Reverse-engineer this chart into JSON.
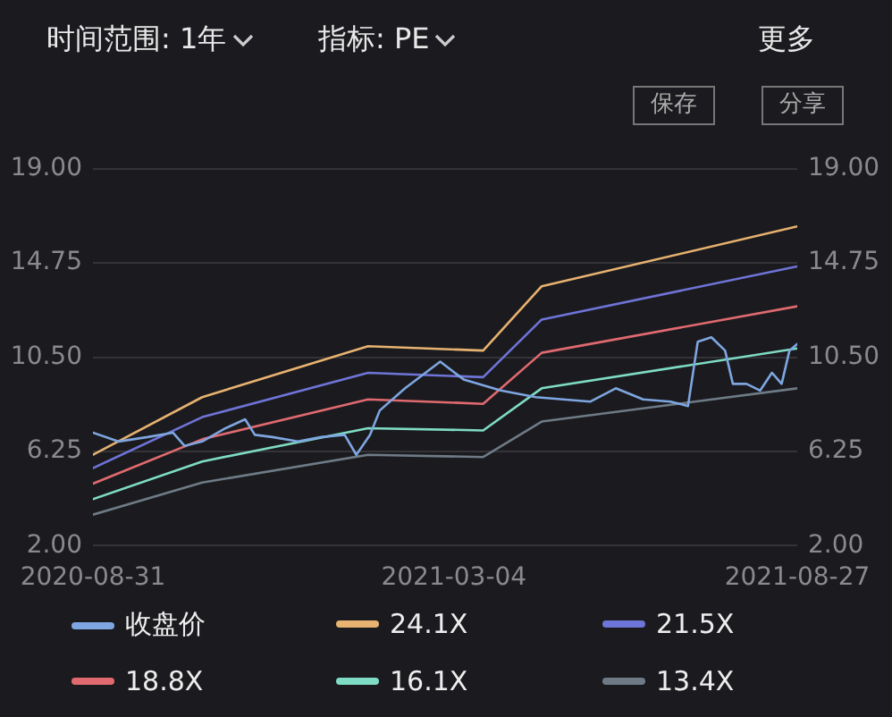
{
  "chart_data": {
    "type": "line",
    "annotations": [
      "时间范围: 1年",
      "指标: PE",
      "更多",
      "保存",
      "分享"
    ],
    "xlim": [
      "2020-08-31",
      "2021-08-27"
    ],
    "xticks": [
      {
        "value": "2020-08-31",
        "label": "2020-08-31"
      },
      {
        "value": "2021-03-04",
        "label": "2021-03-04"
      },
      {
        "value": "2021-08-27",
        "label": "2021-08-27"
      }
    ],
    "ylim": [
      2,
      19
    ],
    "yticks": [
      {
        "value": 2,
        "label": "2.00"
      },
      {
        "value": 6.25,
        "label": "6.25"
      },
      {
        "value": 10.5,
        "label": "10.50"
      },
      {
        "value": 14.75,
        "label": "14.75"
      },
      {
        "value": 19,
        "label": "19.00"
      }
    ],
    "y2lim": [
      2,
      19
    ],
    "y2ticks": [
      {
        "value": 2,
        "label": "2.00"
      },
      {
        "value": 6.25,
        "label": "6.25"
      },
      {
        "value": 10.5,
        "label": "10.50"
      },
      {
        "value": 14.75,
        "label": "14.75"
      },
      {
        "value": 19,
        "label": "19.00"
      }
    ],
    "grid": "y",
    "legend": "bottom",
    "marker": "none",
    "line_style": "solid",
    "series": [
      {
        "name": "收盘价",
        "color": "#7ea6e0",
        "x": [
          "2020-08-31",
          "2020-09-13",
          "2020-09-28",
          "2020-10-11",
          "2020-10-17",
          "2020-10-26",
          "2020-11-07",
          "2020-11-17",
          "2020-11-22",
          "2020-12-01",
          "2020-12-14",
          "2020-12-26",
          "2021-01-07",
          "2021-01-13",
          "2021-01-20",
          "2021-01-25",
          "2021-02-07",
          "2021-02-25",
          "2021-03-09",
          "2021-03-28",
          "2021-04-15",
          "2021-05-13",
          "2021-05-26",
          "2021-06-09",
          "2021-06-23",
          "2021-07-02",
          "2021-07-07",
          "2021-07-14",
          "2021-07-21",
          "2021-07-25",
          "2021-08-01",
          "2021-08-08",
          "2021-08-14",
          "2021-08-19",
          "2021-08-23",
          "2021-08-27"
        ],
        "values": [
          7.1,
          6.7,
          6.9,
          7.1,
          6.5,
          6.7,
          7.3,
          7.7,
          7.0,
          6.9,
          6.7,
          6.9,
          7.0,
          6.1,
          7.0,
          8.1,
          9.1,
          10.3,
          9.5,
          9.0,
          8.7,
          8.5,
          9.1,
          8.6,
          8.5,
          8.3,
          11.2,
          11.4,
          10.8,
          9.3,
          9.3,
          9.0,
          9.8,
          9.3,
          10.8,
          11.1
        ]
      },
      {
        "name": "24.1X",
        "color": "#e8b270",
        "x": [
          "2020-08-31",
          "2020-10-26",
          "2021-01-19",
          "2021-03-19",
          "2021-04-18",
          "2021-08-27"
        ],
        "values": [
          6.1,
          8.7,
          11.0,
          10.8,
          13.7,
          16.4
        ]
      },
      {
        "name": "21.5X",
        "color": "#6f74d8",
        "x": [
          "2020-08-31",
          "2020-10-26",
          "2021-01-19",
          "2021-03-19",
          "2021-04-18",
          "2021-08-27"
        ],
        "values": [
          5.5,
          7.8,
          9.8,
          9.6,
          12.2,
          14.6
        ]
      },
      {
        "name": "18.8X",
        "color": "#e06a70",
        "x": [
          "2020-08-31",
          "2020-10-26",
          "2021-01-19",
          "2021-03-19",
          "2021-04-18",
          "2021-08-27"
        ],
        "values": [
          4.8,
          6.8,
          8.6,
          8.4,
          10.7,
          12.8
        ]
      },
      {
        "name": "16.1X",
        "color": "#7fdcc4",
        "x": [
          "2020-08-31",
          "2020-10-26",
          "2021-01-19",
          "2021-03-19",
          "2021-04-18",
          "2021-08-27"
        ],
        "values": [
          4.1,
          5.8,
          7.3,
          7.2,
          9.1,
          10.9
        ]
      },
      {
        "name": "13.4X",
        "color": "#6e7b86",
        "x": [
          "2020-08-31",
          "2020-10-26",
          "2021-01-19",
          "2021-03-19",
          "2021-04-18",
          "2021-08-27"
        ],
        "values": [
          3.4,
          4.85,
          6.1,
          6.0,
          7.6,
          9.1
        ]
      }
    ]
  }
}
